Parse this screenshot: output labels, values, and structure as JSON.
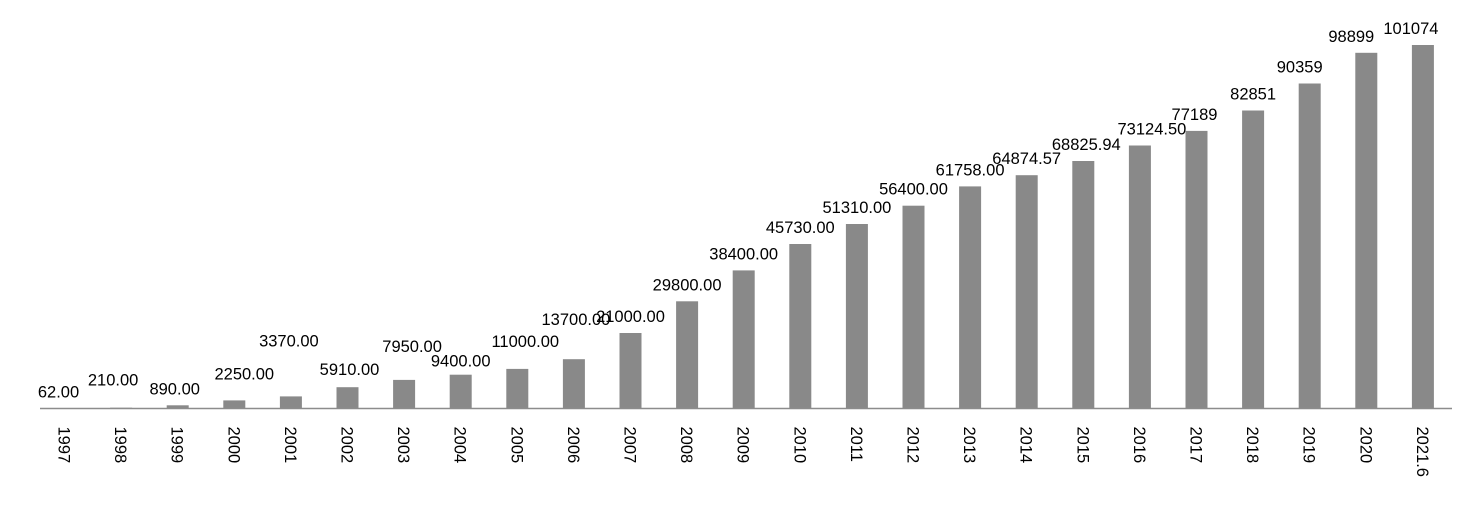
{
  "colors": {
    "bar": "#898989",
    "axis": "#8c8c8c",
    "text": "#000000",
    "background": "#ffffff"
  },
  "chart_data": {
    "type": "bar",
    "title": "",
    "xlabel": "",
    "ylabel": "",
    "ylim": [
      0,
      101074
    ],
    "grid": false,
    "legend": "none",
    "categories": [
      "1997",
      "1998",
      "1999",
      "2000",
      "2001",
      "2002",
      "2003",
      "2004",
      "2005",
      "2006",
      "2007",
      "2008",
      "2009",
      "2010",
      "2011",
      "2012",
      "2013",
      "2014",
      "2015",
      "2016",
      "2017",
      "2018",
      "2019",
      "2020",
      "2021.6"
    ],
    "values": [
      62,
      210,
      890,
      2250,
      3370,
      5910,
      7950,
      9400,
      11000,
      13700,
      21000,
      29800,
      38400,
      45730,
      51310,
      56400,
      61758,
      64874.57,
      68825.94,
      73124.5,
      77189,
      82851,
      90359,
      98899,
      101074
    ],
    "value_labels": [
      "62.00",
      "210.00",
      "890.00",
      "2250.00",
      "3370.00",
      "5910.00",
      "7950.00",
      "9400.00",
      "11000.00",
      "13700.00",
      "21000.00",
      "29800.00",
      "38400.00",
      "45730.00",
      "51310.00",
      "56400.00",
      "61758.00",
      "64874.57",
      "68825.94",
      "73124.50",
      "77189",
      "82851",
      "90359",
      "98899",
      "101074"
    ]
  }
}
